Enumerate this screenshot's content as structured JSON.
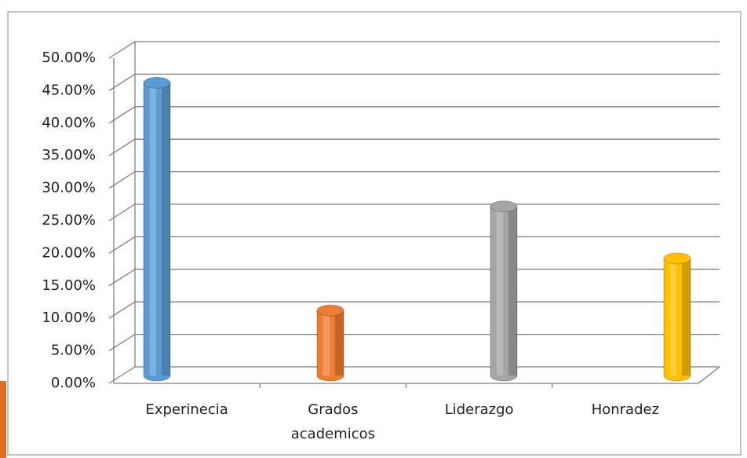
{
  "chart_data": {
    "type": "bar",
    "categories": [
      "Experinecia",
      "Grados academicos",
      "Liderazgo",
      "Honradez"
    ],
    "values": [
      45,
      10,
      26,
      18
    ],
    "colors": [
      "#5b9bd5",
      "#ed7d31",
      "#a5a5a5",
      "#ffc000"
    ],
    "ylim": [
      0,
      50
    ],
    "yticks": [
      {
        "value": 0,
        "label": "0.00%"
      },
      {
        "value": 5,
        "label": "5.00%"
      },
      {
        "value": 10,
        "label": "10.00%"
      },
      {
        "value": 15,
        "label": "15.00%"
      },
      {
        "value": 20,
        "label": "20.00%"
      },
      {
        "value": 25,
        "label": "25.00%"
      },
      {
        "value": 30,
        "label": "30.00%"
      },
      {
        "value": 35,
        "label": "35.00%"
      },
      {
        "value": 40,
        "label": "40.00%"
      },
      {
        "value": 45,
        "label": "45.00%"
      },
      {
        "value": 50,
        "label": "50.00%"
      }
    ],
    "grid": true
  }
}
